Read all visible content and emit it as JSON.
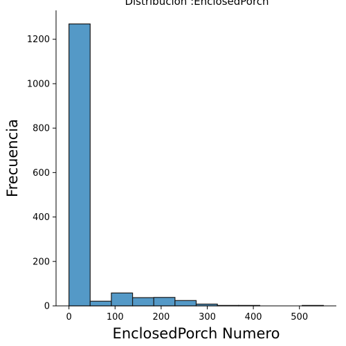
{
  "chart_data": {
    "type": "bar",
    "title": "Distribución :EnclosedPorch",
    "xlabel": "EnclosedPorch Numero",
    "ylabel": "Frecuencia",
    "xlim": [
      -28,
      580
    ],
    "ylim": [
      0,
      1330
    ],
    "xticks": [
      0,
      100,
      200,
      300,
      400,
      500
    ],
    "yticks": [
      0,
      200,
      400,
      600,
      800,
      1000,
      1200
    ],
    "bin_edges": [
      0,
      46,
      92,
      138,
      184,
      230,
      276,
      322,
      368,
      414,
      460,
      506,
      552
    ],
    "values": [
      1269,
      21,
      58,
      37,
      38,
      24,
      8,
      2,
      2,
      0,
      0,
      2
    ],
    "bar_color": "#5499c7",
    "edge_color": "#1a1a1a",
    "grid": false,
    "legend": false
  }
}
